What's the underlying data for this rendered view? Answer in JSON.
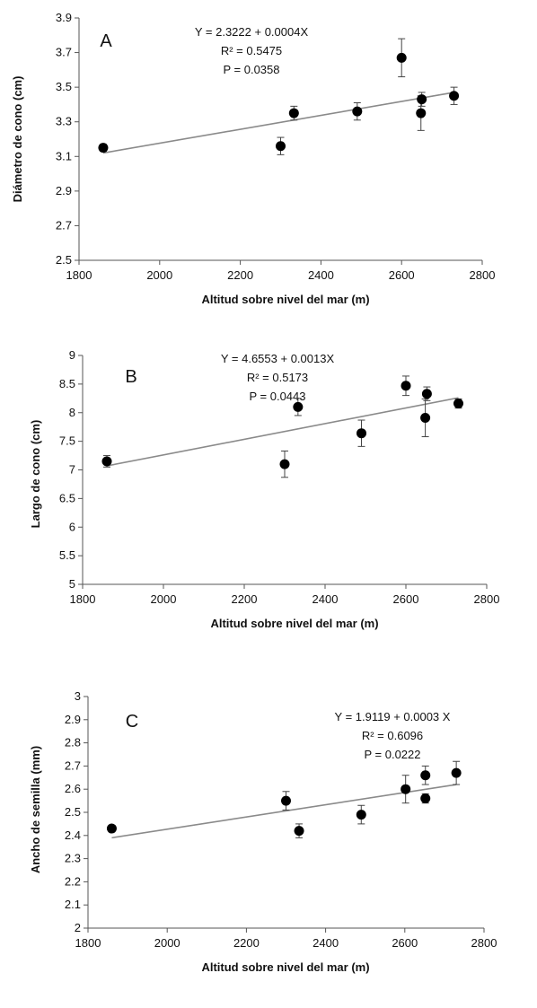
{
  "chart_data": [
    {
      "type": "scatter",
      "panel_label": "A",
      "xlabel": "Altitud sobre nivel del mar (m)",
      "ylabel": "Diámetro de cono (cm)",
      "xlim": [
        1800,
        2800
      ],
      "ylim": [
        2.5,
        3.9
      ],
      "x_ticks": [
        "1800",
        "2000",
        "2200",
        "2400",
        "2600",
        "2800"
      ],
      "y_ticks": [
        "2.5",
        "2.7",
        "2.9",
        "3.1",
        "3.3",
        "3.5",
        "3.7",
        "3.9"
      ],
      "annotations": [
        "Y = 2.3222 + 0.0004X",
        "R² = 0.5475",
        "P = 0.0358"
      ],
      "points": [
        {
          "x": 1860,
          "y": 3.15,
          "err": 0.02
        },
        {
          "x": 2300,
          "y": 3.16,
          "err": 0.05
        },
        {
          "x": 2333,
          "y": 3.35,
          "err": 0.04
        },
        {
          "x": 2490,
          "y": 3.36,
          "err": 0.05
        },
        {
          "x": 2600,
          "y": 3.67,
          "err": 0.11
        },
        {
          "x": 2648,
          "y": 3.35,
          "err": 0.1
        },
        {
          "x": 2650,
          "y": 3.43,
          "err": 0.04
        },
        {
          "x": 2730,
          "y": 3.45,
          "err": 0.05
        }
      ],
      "trendline": {
        "x": [
          1860,
          2730
        ],
        "y": [
          3.12,
          3.47
        ]
      }
    },
    {
      "type": "scatter",
      "panel_label": "B",
      "xlabel": "Altitud sobre nivel del mar (m)",
      "ylabel": "Largo de cono (cm)",
      "xlim": [
        1800,
        2800
      ],
      "ylim": [
        5,
        9
      ],
      "x_ticks": [
        "1800",
        "2000",
        "2200",
        "2400",
        "2600",
        "2800"
      ],
      "y_ticks": [
        "5",
        "5.5",
        "6",
        "6.5",
        "7",
        "7.5",
        "8",
        "8.5",
        "9"
      ],
      "annotations": [
        "Y = 4.6553 + 0.0013X",
        "R² = 0.5173",
        "P = 0.0443"
      ],
      "points": [
        {
          "x": 1860,
          "y": 7.15,
          "err": 0.1
        },
        {
          "x": 2300,
          "y": 7.1,
          "err": 0.23
        },
        {
          "x": 2333,
          "y": 8.1,
          "err": 0.15
        },
        {
          "x": 2490,
          "y": 7.64,
          "err": 0.23
        },
        {
          "x": 2600,
          "y": 8.47,
          "err": 0.17
        },
        {
          "x": 2648,
          "y": 7.91,
          "err": 0.33
        },
        {
          "x": 2652,
          "y": 8.33,
          "err": 0.12
        },
        {
          "x": 2730,
          "y": 8.16,
          "err": 0.08
        }
      ],
      "trendline": {
        "x": [
          1860,
          2730
        ],
        "y": [
          7.07,
          8.26
        ]
      }
    },
    {
      "type": "scatter",
      "panel_label": "C",
      "xlabel": "Altitud sobre nivel del mar (m)",
      "ylabel": "Ancho de semilla (mm)",
      "xlim": [
        1800,
        2800
      ],
      "ylim": [
        2,
        3
      ],
      "x_ticks": [
        "1800",
        "2000",
        "2200",
        "2400",
        "2600",
        "2800"
      ],
      "y_ticks": [
        "2",
        "2.1",
        "2.2",
        "2.3",
        "2.4",
        "2.5",
        "2.6",
        "2.7",
        "2.8",
        "2.9",
        "3"
      ],
      "annotations": [
        "Y = 1.9119 + 0.0003 X",
        "R² = 0.6096",
        "P = 0.0222"
      ],
      "points": [
        {
          "x": 1860,
          "y": 2.43,
          "err": 0.01
        },
        {
          "x": 2300,
          "y": 2.55,
          "err": 0.04
        },
        {
          "x": 2333,
          "y": 2.42,
          "err": 0.03
        },
        {
          "x": 2490,
          "y": 2.49,
          "err": 0.04
        },
        {
          "x": 2602,
          "y": 2.6,
          "err": 0.06
        },
        {
          "x": 2652,
          "y": 2.56,
          "err": 0.02
        },
        {
          "x": 2652,
          "y": 2.66,
          "err": 0.04
        },
        {
          "x": 2730,
          "y": 2.67,
          "err": 0.05
        }
      ],
      "trendline": {
        "x": [
          1860,
          2730
        ],
        "y": [
          2.39,
          2.62
        ]
      }
    }
  ]
}
